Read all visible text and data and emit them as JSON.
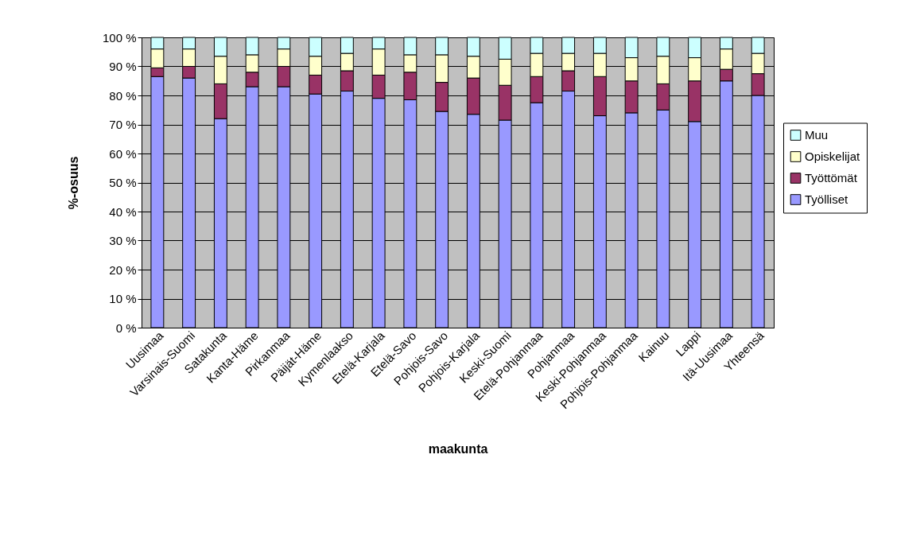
{
  "chart_data": {
    "type": "bar",
    "stacked": true,
    "xlabel": "maakunta",
    "ylabel": "%-osuus",
    "categories": [
      "Uusimaa",
      "Varsinais-Suomi",
      "Satakunta",
      "Kanta-Häme",
      "Pirkanmaa",
      "Päijät-Häme",
      "Kymenlaakso",
      "Etelä-Karjala",
      "Etelä-Savo",
      "Pohjois-Savo",
      "Pohjois-Karjala",
      "Keski-Suomi",
      "Etelä-Pohjanmaa",
      "Pohjanmaa",
      "Keski-Pohjanmaa",
      "Pohjois-Pohjanmaa",
      "Kainuu",
      "Lappi",
      "Itä-Uusimaa",
      "Yhteensä"
    ],
    "series": [
      {
        "name": "Työlliset",
        "color": "#9999ff",
        "values": [
          86.5,
          86,
          72,
          83,
          83,
          80.5,
          81.5,
          79,
          78.5,
          74.5,
          73.5,
          71.5,
          77.5,
          81.5,
          73,
          74,
          75,
          71,
          85,
          80
        ]
      },
      {
        "name": "Työttömät",
        "color": "#993366",
        "values": [
          3,
          4,
          12,
          5,
          7,
          6.5,
          7,
          8,
          9.5,
          10,
          12.5,
          12,
          9,
          7,
          13.5,
          11,
          9,
          14,
          4,
          7.5
        ]
      },
      {
        "name": "Opiskelijat",
        "color": "#ffffcc",
        "values": [
          6.5,
          6,
          9.5,
          6,
          6,
          6.5,
          6,
          9,
          6,
          9.5,
          7.5,
          9,
          8,
          6,
          8,
          8,
          9.5,
          8,
          7,
          7
        ]
      },
      {
        "name": "Muu",
        "color": "#ccffff",
        "values": [
          4,
          4,
          6.5,
          6,
          4,
          6.5,
          5.5,
          4,
          6,
          6,
          6.5,
          7.5,
          5.5,
          5.5,
          5.5,
          7,
          6.5,
          7,
          4,
          5.5
        ]
      }
    ],
    "ylim": [
      0,
      100
    ],
    "yticks": [
      {
        "value": 0,
        "label": "0 %"
      },
      {
        "value": 10,
        "label": "10 %"
      },
      {
        "value": 20,
        "label": "20 %"
      },
      {
        "value": 30,
        "label": "30 %"
      },
      {
        "value": 40,
        "label": "40 %"
      },
      {
        "value": 50,
        "label": "50 %"
      },
      {
        "value": 60,
        "label": "60 %"
      },
      {
        "value": 70,
        "label": "70 %"
      },
      {
        "value": 80,
        "label": "80 %"
      },
      {
        "value": 90,
        "label": "90 %"
      },
      {
        "value": 100,
        "label": "100 %"
      }
    ],
    "grid": "y",
    "legend": "right"
  }
}
